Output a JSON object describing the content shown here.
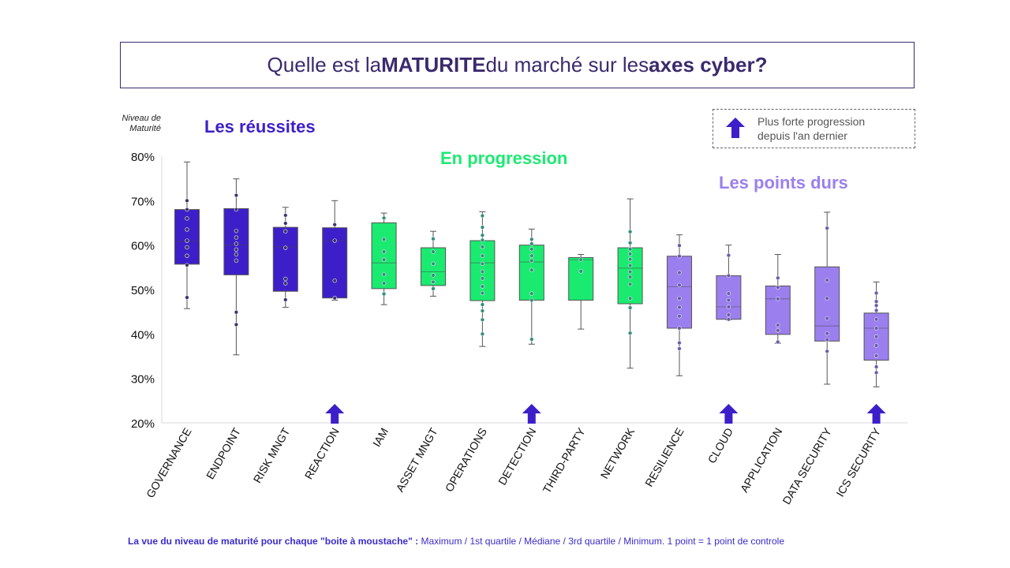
{
  "title": {
    "part1": "Quelle est la ",
    "bold1": "MATURITE",
    "part2": " du marché sur les ",
    "bold2": "axes cyber?"
  },
  "legend": {
    "line1": "Plus forte progression",
    "line2": "depuis l'an dernier"
  },
  "ylabel": {
    "line1": "Niveau de",
    "line2": "Maturité"
  },
  "groups": {
    "reussites": "Les réussites",
    "progression": "En progression",
    "points_durs": "Les points durs"
  },
  "footnote": {
    "bold": "La vue du niveau de maturité pour chaque \"boite à moustache\" :",
    "text": " Maximum / 1st quartile / Médiane / 3rd quartile / Minimum. 1 point = 1 point de controle"
  },
  "colors": {
    "reussites": "#3d1fc9",
    "progression": "#1aeb70",
    "points_durs": "#9b7fee",
    "arrow": "#3d1fc9",
    "title": "#3b2a6e"
  },
  "chart_data": {
    "type": "box",
    "ylim": [
      20,
      80
    ],
    "yticks": [
      "20%",
      "30%",
      "40%",
      "50%",
      "60%",
      "70%",
      "80%"
    ],
    "ytick_values": [
      20,
      30,
      40,
      50,
      60,
      70,
      80
    ],
    "categories": [
      {
        "label": "GOVERNANCE",
        "group": "reussites",
        "min": 45.7,
        "q1": 55.7,
        "median": 60.8,
        "q3": 68.0,
        "max": 78.7,
        "points": [
          48.2,
          55.5,
          57.6,
          59.5,
          61.0,
          63.5,
          66.0,
          68.0,
          70.0
        ],
        "arrow": false
      },
      {
        "label": "ENDPOINT",
        "group": "reussites",
        "min": 35.3,
        "q1": 53.3,
        "median": 60.0,
        "q3": 68.2,
        "max": 74.9,
        "points": [
          42.1,
          44.9,
          56.5,
          57.9,
          59.0,
          60.3,
          61.7,
          63.2,
          68.0,
          71.2
        ],
        "arrow": false
      },
      {
        "label": "RISK MNGT",
        "group": "reussites",
        "min": 46.0,
        "q1": 49.6,
        "median": 59.6,
        "q3": 64.0,
        "max": 68.5,
        "points": [
          47.7,
          51.4,
          52.4,
          59.4,
          63.1,
          64.9,
          66.7
        ],
        "arrow": false
      },
      {
        "label": "REACTION",
        "group": "reussites",
        "min": 47.6,
        "q1": 48.1,
        "median": 61.0,
        "q3": 63.9,
        "max": 70.0,
        "points": [
          48.1,
          52.0,
          61.0,
          64.6
        ],
        "arrow": true
      },
      {
        "label": "IAM",
        "group": "progression",
        "min": 46.6,
        "q1": 50.2,
        "median": 56.0,
        "q3": 65.0,
        "max": 67.2,
        "points": [
          49.0,
          51.4,
          53.4,
          56.7,
          58.5,
          61.3,
          66.1
        ],
        "arrow": false
      },
      {
        "label": "ASSET MNGT",
        "group": "progression",
        "min": 48.5,
        "q1": 50.9,
        "median": 54.0,
        "q3": 59.4,
        "max": 63.1,
        "points": [
          50.2,
          51.7,
          53.2,
          55.8,
          58.5,
          61.4
        ],
        "arrow": false
      },
      {
        "label": "OPERATIONS",
        "group": "progression",
        "min": 37.2,
        "q1": 47.5,
        "median": 56.0,
        "q3": 61.0,
        "max": 67.5,
        "points": [
          40.0,
          43.2,
          45.2,
          46.6,
          49.2,
          50.7,
          52.5,
          54.0,
          55.8,
          57.6,
          59.6,
          61.1,
          62.2,
          64.0,
          66.6
        ],
        "arrow": false
      },
      {
        "label": "DETECTION",
        "group": "progression",
        "min": 37.7,
        "q1": 47.6,
        "median": 56.2,
        "q3": 60.0,
        "max": 63.6,
        "points": [
          38.8,
          47.6,
          49.1,
          54.4,
          56.5,
          57.6,
          59.1,
          60.3,
          61.3
        ],
        "arrow": true
      },
      {
        "label": "THIRD-PARTY",
        "group": "progression",
        "min": 41.1,
        "q1": 47.6,
        "median": 56.7,
        "q3": 57.2,
        "max": 57.9,
        "points": [
          54.1,
          56.7
        ],
        "arrow": false
      },
      {
        "label": "NETWORK",
        "group": "progression",
        "min": 32.3,
        "q1": 46.8,
        "median": 54.8,
        "q3": 59.4,
        "max": 70.4,
        "points": [
          40.2,
          45.9,
          48.0,
          51.2,
          52.8,
          54.0,
          55.4,
          56.8,
          58.0,
          59.1,
          60.5,
          63.0
        ],
        "arrow": false
      },
      {
        "label": "RESILIENCE",
        "group": "points_durs",
        "min": 30.6,
        "q1": 41.3,
        "median": 50.6,
        "q3": 57.5,
        "max": 62.3,
        "points": [
          36.7,
          38.0,
          41.3,
          44.0,
          46.0,
          48.0,
          51.0,
          53.8,
          57.5,
          59.9
        ],
        "arrow": false
      },
      {
        "label": "CLOUD",
        "group": "points_durs",
        "min": 43.2,
        "q1": 43.3,
        "median": 46.1,
        "q3": 53.1,
        "max": 60.0,
        "points": [
          43.3,
          44.3,
          46.1,
          47.6,
          49.1,
          53.1,
          57.7
        ],
        "arrow": true
      },
      {
        "label": "APPLICATION",
        "group": "points_durs",
        "min": 37.9,
        "q1": 39.9,
        "median": 47.9,
        "q3": 50.8,
        "max": 57.9,
        "points": [
          38.2,
          40.8,
          42.0,
          47.9,
          50.5,
          52.6
        ],
        "arrow": false
      },
      {
        "label": "DATA SECURITY",
        "group": "points_durs",
        "min": 28.7,
        "q1": 38.4,
        "median": 41.8,
        "q3": 55.1,
        "max": 67.4,
        "points": [
          36.1,
          38.7,
          40.1,
          43.5,
          48.0,
          52.1,
          63.8
        ],
        "arrow": false
      },
      {
        "label": "ICS SECURITY",
        "group": "points_durs",
        "min": 28.1,
        "q1": 34.1,
        "median": 41.3,
        "q3": 44.7,
        "max": 51.7,
        "points": [
          31.3,
          32.6,
          35.1,
          37.4,
          39.4,
          41.3,
          43.3,
          45.3,
          46.4,
          47.3,
          49.2
        ],
        "arrow": true
      }
    ]
  }
}
